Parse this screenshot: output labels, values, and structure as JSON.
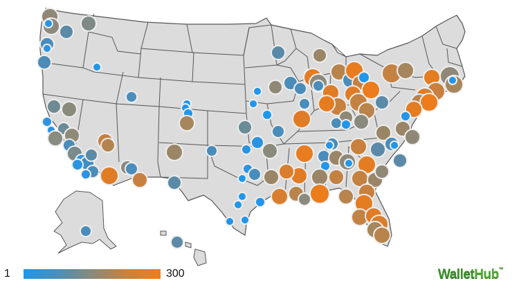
{
  "legend": {
    "min_label": "1",
    "max_label": "300",
    "low_color": "#2196ea",
    "high_color": "#f07d1a"
  },
  "brand": {
    "name_part1": "Wallet",
    "name_part2": "Hub",
    "trademark": "™",
    "color": "#3c8f2c"
  },
  "map_colors": {
    "land": "#dcdcdc",
    "state_border": "#555555",
    "ocean": "#ffffff"
  },
  "marker_scale": {
    "min_rank": 1,
    "max_rank": 300,
    "size": "larger markers for higher rank values",
    "encoding": "color and size by rank"
  }
}
